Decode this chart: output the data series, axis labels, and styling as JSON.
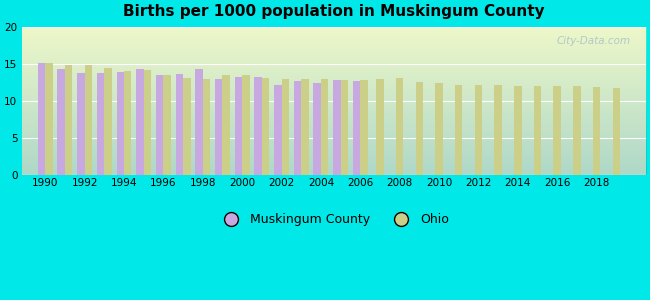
{
  "title": "Births per 1000 population in Muskingum County",
  "background_color": "#00e8e8",
  "ylim": [
    0,
    20
  ],
  "yticks": [
    0,
    5,
    10,
    15,
    20
  ],
  "years": [
    1990,
    1991,
    1992,
    1993,
    1994,
    1995,
    1996,
    1997,
    1998,
    1999,
    2000,
    2001,
    2002,
    2003,
    2004,
    2005,
    2006,
    2007,
    2008,
    2009,
    2010,
    2011,
    2012,
    2013,
    2014,
    2015,
    2016,
    2017,
    2018,
    2019
  ],
  "muskingum": [
    15.1,
    14.4,
    13.8,
    13.8,
    13.9,
    14.4,
    13.6,
    13.7,
    14.3,
    13.0,
    13.3,
    13.3,
    12.2,
    12.7,
    12.5,
    12.8,
    12.7,
    null,
    null,
    null,
    null,
    null,
    null,
    null,
    null,
    null,
    null,
    null,
    null,
    null
  ],
  "ohio": [
    15.2,
    14.9,
    14.9,
    14.5,
    14.1,
    14.2,
    13.6,
    13.1,
    13.0,
    13.6,
    13.5,
    13.2,
    13.0,
    13.0,
    13.0,
    12.8,
    12.8,
    13.0,
    13.1,
    12.6,
    12.4,
    12.2,
    12.2,
    12.2,
    12.1,
    12.1,
    12.0,
    12.0,
    11.9,
    11.8
  ],
  "muskingum_color": "#c8a8e0",
  "ohio_color": "#cccf88",
  "bar_width": 0.38,
  "legend_muskingum": "Muskingum County",
  "legend_ohio": "Ohio",
  "watermark": "City-Data.com",
  "xtick_years": [
    1990,
    1992,
    1994,
    1996,
    1998,
    2000,
    2002,
    2004,
    2006,
    2008,
    2010,
    2012,
    2014,
    2016,
    2018
  ]
}
